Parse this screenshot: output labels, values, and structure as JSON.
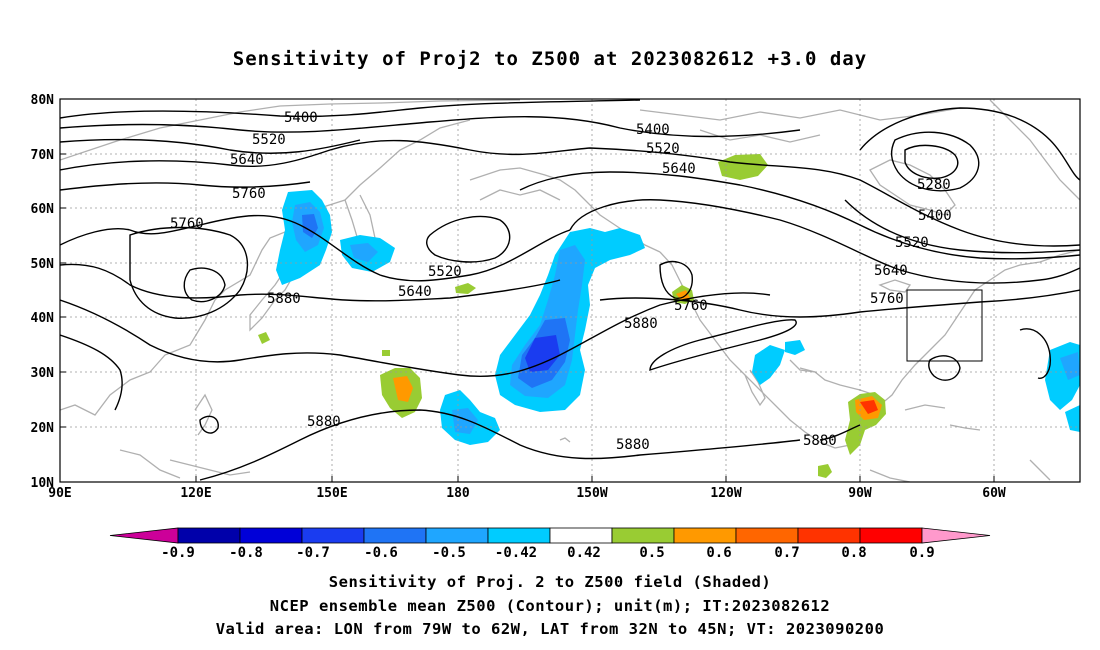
{
  "title": "Sensitivity of Proj2 to Z500 at 2023082612 +3.0 day",
  "map": {
    "lat_labels": [
      "80N",
      "70N",
      "60N",
      "50N",
      "40N",
      "30N",
      "20N",
      "10N"
    ],
    "lon_labels": [
      "90E",
      "120E",
      "150E",
      "180",
      "150W",
      "120W",
      "90W",
      "60W"
    ],
    "contour_labels": [
      "5400",
      "5520",
      "5640",
      "5760",
      "5760",
      "5880",
      "5400",
      "5520",
      "5640",
      "5520",
      "5640",
      "5760",
      "5880",
      "5280",
      "5400",
      "5520",
      "5640",
      "5760",
      "5880",
      "5880",
      "5880"
    ],
    "valid_area": {
      "lon_from": "79W",
      "lon_to": "62W",
      "lat_from": "32N",
      "lat_to": "45N"
    }
  },
  "colorbar": {
    "tick_labels": [
      "-0.9",
      "-0.8",
      "-0.7",
      "-0.6",
      "-0.5",
      "-0.42",
      "0.42",
      "0.5",
      "0.6",
      "0.7",
      "0.8",
      "0.9"
    ],
    "colors": [
      "#cc0099",
      "#0000aa",
      "#0000d8",
      "#1a3cf0",
      "#1f74f5",
      "#1fa6ff",
      "#00ccff",
      "#ffffff",
      "#99cc33",
      "#ff9900",
      "#ff6600",
      "#ff3300",
      "#ff0000",
      "#ff99cc"
    ]
  },
  "captions": {
    "line1": "Sensitivity of Proj. 2 to Z500 field (Shaded)",
    "line2": "NCEP ensemble mean Z500 (Contour); unit(m); IT:2023082612",
    "line3": "Valid area: LON from 79W to 62W, LAT from 32N to 45N; VT: 2023090200"
  }
}
